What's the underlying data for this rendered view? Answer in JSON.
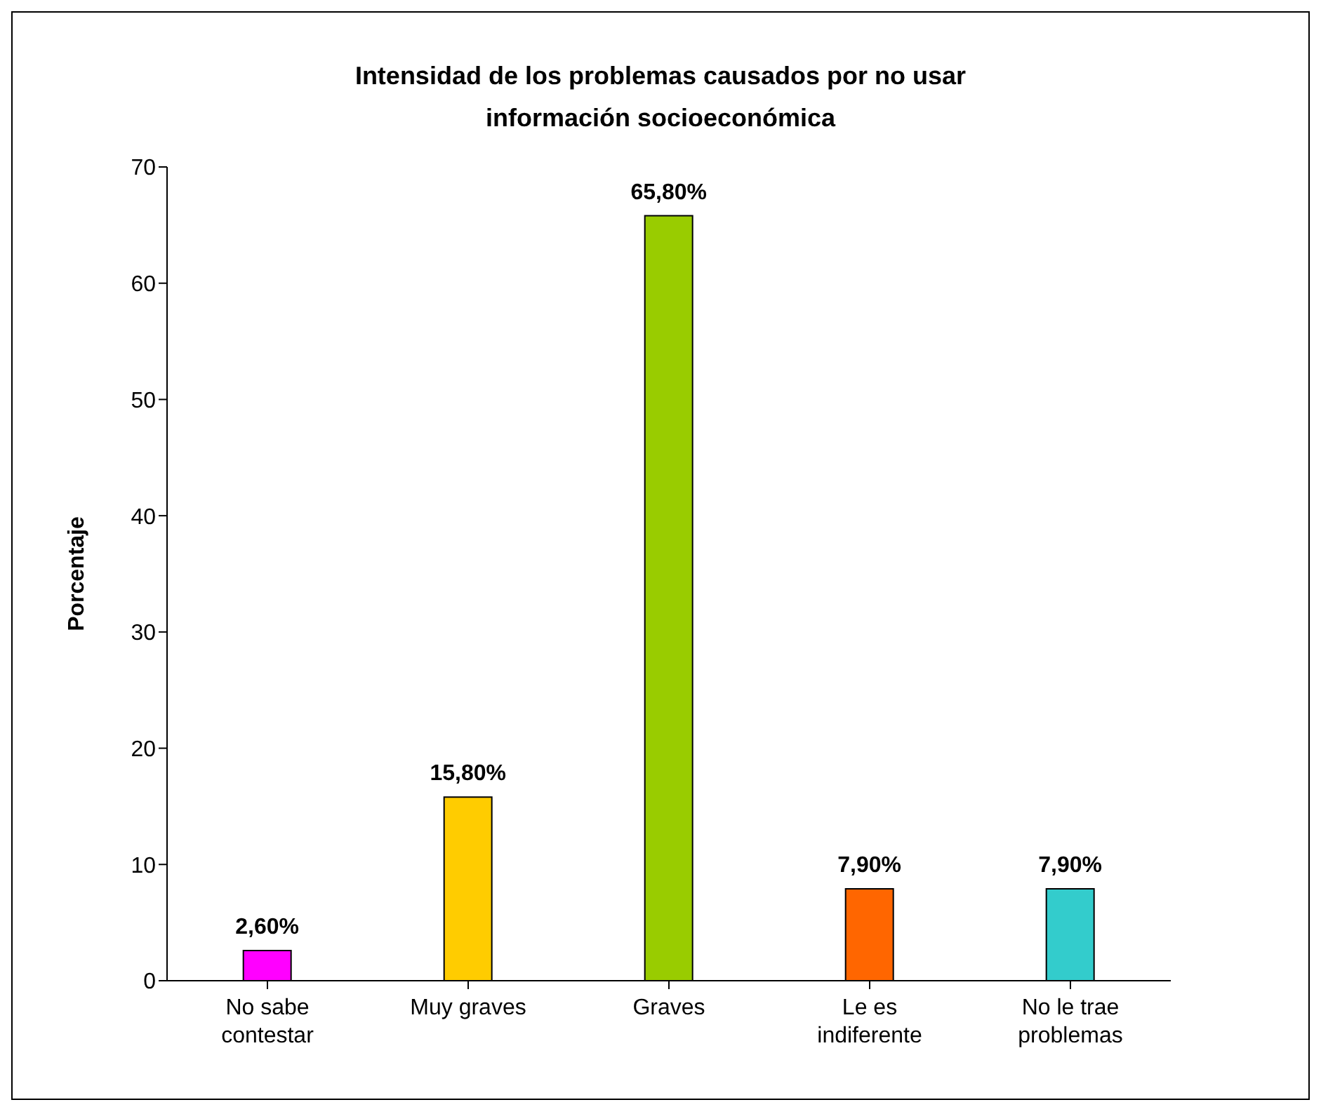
{
  "chart_data": {
    "type": "bar",
    "title": "Intensidad de los problemas causados por no usar información socioeconómica",
    "ylabel": "Porcentaje",
    "categories": [
      "No sabe contestar",
      "Muy graves",
      "Graves",
      "Le es indiferente",
      "No le trae problemas"
    ],
    "values": [
      2.6,
      15.8,
      65.8,
      7.9,
      7.9
    ],
    "value_labels": [
      "2,60%",
      "15,80%",
      "65,80%",
      "7,90%",
      "7,90%"
    ],
    "colors": [
      "#ff00ff",
      "#ffcc00",
      "#99cc00",
      "#ff6600",
      "#33cccc"
    ],
    "ylim": [
      0,
      70
    ],
    "yticks": [
      0,
      10,
      20,
      30,
      40,
      50,
      60,
      70
    ],
    "grid": false,
    "legend": false
  }
}
